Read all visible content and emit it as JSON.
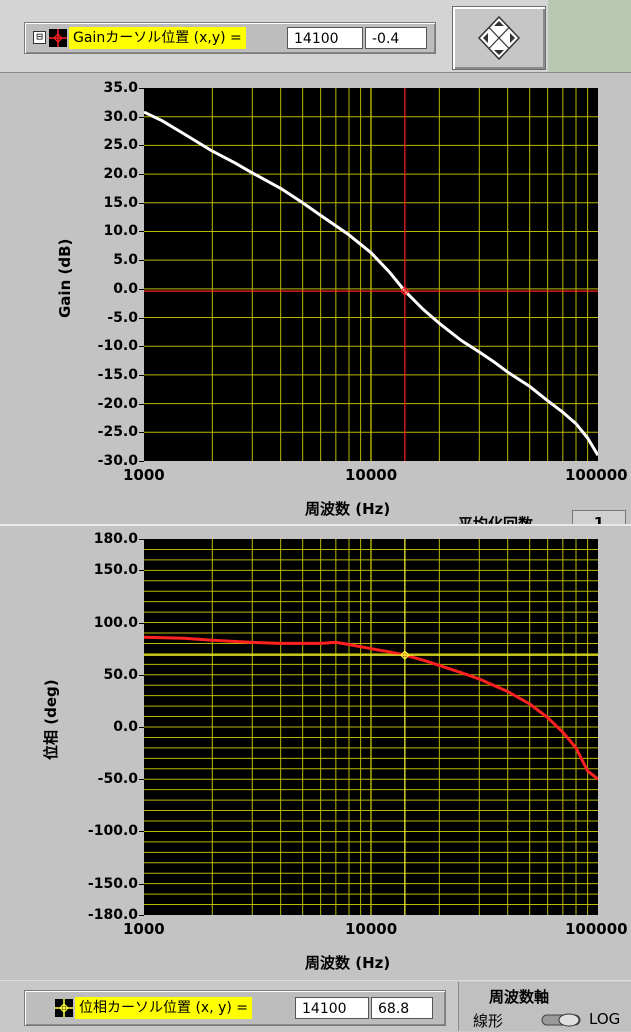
{
  "gain_cursor": {
    "label": "Gainカーソル位置 (x,y) =",
    "x": "14100",
    "y": "-0.4",
    "expand_symbol": "⊟"
  },
  "phase_cursor": {
    "label": "位相カーソル位置 (x, y) =",
    "x": "14100",
    "y": "68.8"
  },
  "averaging": {
    "label": "平均化回数",
    "value": "1"
  },
  "freq_axis": {
    "title": "周波数軸",
    "linear_label": "線形",
    "log_label": "LOG"
  },
  "icons": {
    "expand": "expand-collapse-icon",
    "cursor": "crosshair-icon",
    "navigation": "diamond-navigation-icon",
    "toggle": "toggle-switch-icon"
  },
  "colors": {
    "plot_bg": "#000000",
    "grid": "#b8b800",
    "gain_trace": "#ffffff",
    "phase_trace": "#ff2020",
    "gain_cursor": "#ff2020",
    "phase_cursor": "#ffff33",
    "cursor_label_bg": "#ffff00"
  },
  "chart_data": [
    {
      "type": "line",
      "title": "",
      "xlabel": "周波数 (Hz)",
      "ylabel": "Gain (dB)",
      "x_scale": "log",
      "xlim": [
        1000,
        100000
      ],
      "ylim": [
        -30,
        35
      ],
      "xticks": [
        "1000",
        "10000",
        "100000"
      ],
      "yticks": [
        "35.0",
        "30.0",
        "25.0",
        "20.0",
        "15.0",
        "10.0",
        "5.0",
        "0.0",
        "-5.0",
        "-10.0",
        "-15.0",
        "-20.0",
        "-25.0",
        "-30.0"
      ],
      "grid": true,
      "cursor": {
        "x": 14100,
        "y": -0.4
      },
      "series": [
        {
          "x": [
            1000,
            1200,
            1500,
            2000,
            2500,
            3000,
            4000,
            5000,
            6000,
            7000,
            8000,
            10000,
            12000,
            14100,
            17000,
            20000,
            25000,
            30000,
            35000,
            40000,
            50000,
            60000,
            70000,
            80000,
            90000,
            100000
          ],
          "y": [
            30.8,
            29.3,
            27.0,
            24.0,
            22.0,
            20.2,
            17.5,
            15.0,
            12.8,
            11.0,
            9.4,
            6.3,
            3.0,
            -0.4,
            -3.6,
            -6.0,
            -9.0,
            -11.0,
            -12.8,
            -14.5,
            -17.0,
            -19.5,
            -21.5,
            -23.5,
            -26.0,
            -29.0
          ]
        }
      ]
    },
    {
      "type": "line",
      "title": "",
      "xlabel": "周波数 (Hz)",
      "ylabel": "位相 (deg)",
      "x_scale": "log",
      "xlim": [
        1000,
        100000
      ],
      "ylim": [
        -180,
        180
      ],
      "xticks": [
        "1000",
        "10000",
        "100000"
      ],
      "yticks": [
        "180.0",
        "150.0",
        "100.0",
        "50.0",
        "0.0",
        "-50.0",
        "-100.0",
        "-150.0",
        "-180.0"
      ],
      "grid": true,
      "cursor": {
        "x": 14100,
        "y": 68.8
      },
      "series": [
        {
          "x": [
            1000,
            1500,
            2000,
            3000,
            4000,
            5000,
            6000,
            7000,
            8000,
            10000,
            12000,
            14100,
            17000,
            20000,
            25000,
            30000,
            40000,
            50000,
            60000,
            70000,
            80000,
            90000,
            100000
          ],
          "y": [
            86,
            85,
            83,
            81,
            80,
            80,
            80,
            81,
            79,
            75,
            72,
            68.8,
            64,
            59,
            52,
            46,
            34,
            22,
            9,
            -5,
            -20,
            -42,
            -50
          ]
        }
      ]
    }
  ]
}
